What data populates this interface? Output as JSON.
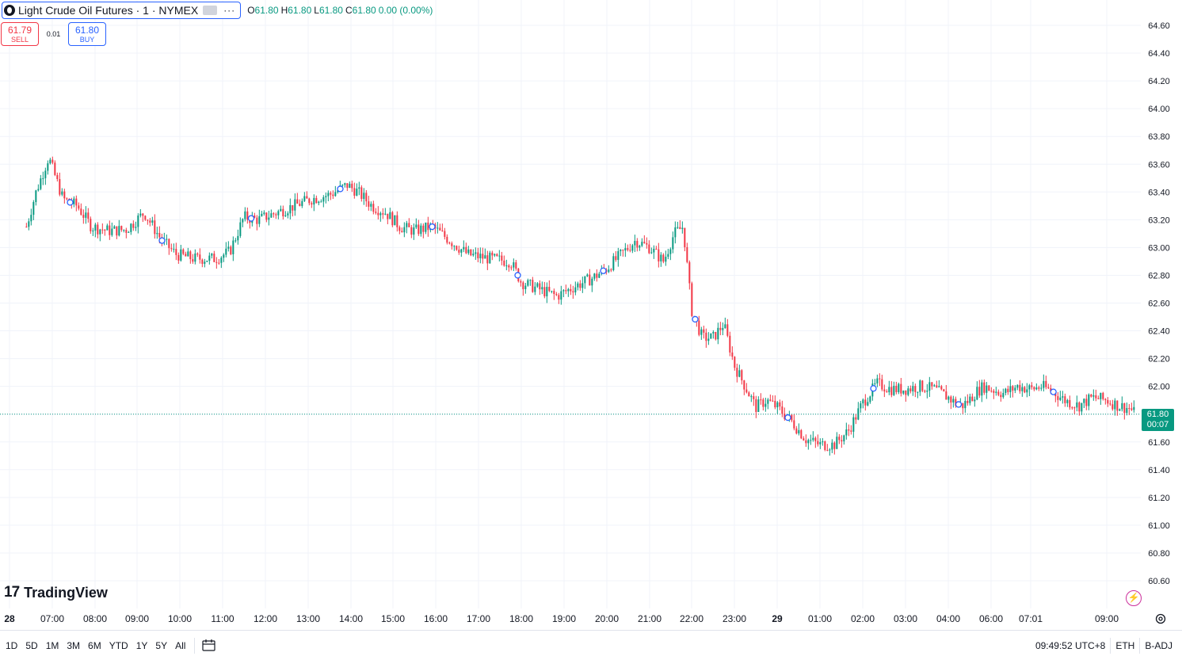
{
  "symbol": {
    "title": "Light Crude Oil Futures · 1 · NYMEX",
    "more": "···",
    "ohlc": {
      "o_label": "O",
      "o": "61.80",
      "h_label": "H",
      "h": "61.80",
      "l_label": "L",
      "l": "61.80",
      "c_label": "C",
      "c": "61.80",
      "change": "0.00 (0.00%)"
    }
  },
  "trade": {
    "sell_price": "61.79",
    "sell_label": "SELL",
    "spread": "0.01",
    "buy_price": "61.80",
    "buy_label": "BUY"
  },
  "last_price": {
    "price": "61.80",
    "countdown": "00:07"
  },
  "branding": {
    "name": "TradingView"
  },
  "periods": [
    "1D",
    "5D",
    "1M",
    "3M",
    "6M",
    "YTD",
    "1Y",
    "5Y",
    "All"
  ],
  "status": {
    "time": "09:49:52 UTC+8",
    "session": "ETH",
    "adjust": "B-ADJ"
  },
  "icons": {
    "settings": "gear-icon",
    "flash": "lightning-icon",
    "range": "calendar-range-icon",
    "logo": "tradingview-logo-icon"
  },
  "colors": {
    "up": "#089981",
    "down": "#f23645",
    "accent": "#2962ff",
    "event": "#2962ff"
  },
  "chart_data": {
    "type": "candlestick",
    "title": "",
    "ylim": [
      60.5,
      64.7
    ],
    "y_ticks": [
      "64.60",
      "64.40",
      "64.20",
      "64.00",
      "63.80",
      "63.60",
      "63.40",
      "63.20",
      "63.00",
      "62.80",
      "62.60",
      "62.40",
      "62.20",
      "62.00",
      "61.80",
      "61.60",
      "61.40",
      "61.20",
      "61.00",
      "60.80",
      "60.60"
    ],
    "x_ticks": [
      "28",
      "07:00",
      "08:00",
      "09:00",
      "10:00",
      "11:00",
      "12:00",
      "13:00",
      "14:00",
      "15:00",
      "16:00",
      "17:00",
      "18:00",
      "19:00",
      "20:00",
      "21:00",
      "22:00",
      "23:00",
      "29",
      "01:00",
      "02:00",
      "03:00",
      "04:00",
      "06:00",
      "07:01",
      "09:00"
    ],
    "last_price": 61.8,
    "x": [
      "06:25",
      "06:38",
      "06:55",
      "07:15",
      "07:35",
      "07:55",
      "08:20",
      "08:45",
      "09:10",
      "09:35",
      "09:55",
      "10:20",
      "10:50",
      "11:10",
      "11:30",
      "11:50",
      "12:15",
      "12:40",
      "13:05",
      "13:30",
      "13:55",
      "14:10",
      "14:30",
      "14:50",
      "15:10",
      "15:30",
      "15:55",
      "16:20",
      "16:45",
      "17:15",
      "17:45",
      "18:00",
      "18:25",
      "18:50",
      "19:15",
      "19:40",
      "20:00",
      "20:20",
      "20:40",
      "21:00",
      "21:20",
      "21:35",
      "21:48",
      "22:00",
      "22:15",
      "22:30",
      "22:45",
      "23:00",
      "23:15",
      "23:30",
      "23:45",
      "00:00",
      "00:20",
      "00:40",
      "01:00",
      "01:20",
      "01:40",
      "02:00",
      "02:20",
      "02:40",
      "03:00",
      "03:20",
      "03:40",
      "04:00",
      "04:20",
      "04:40",
      "05:00",
      "05:20",
      "05:40",
      "06:00",
      "06:20",
      "06:40",
      "07:00",
      "07:20",
      "07:40",
      "08:00",
      "08:20",
      "08:40",
      "09:00",
      "09:20",
      "09:40",
      "09:49"
    ],
    "series": [
      {
        "name": "Close",
        "values": [
          63.15,
          63.4,
          63.65,
          63.35,
          63.3,
          63.15,
          63.12,
          63.13,
          63.25,
          63.05,
          62.95,
          62.92,
          62.92,
          62.97,
          63.22,
          63.2,
          63.25,
          63.3,
          63.35,
          63.38,
          63.45,
          63.4,
          63.3,
          63.25,
          63.15,
          63.12,
          63.15,
          63.05,
          62.95,
          62.92,
          62.9,
          62.75,
          62.7,
          62.65,
          62.72,
          62.78,
          62.85,
          62.95,
          63.05,
          63.0,
          62.9,
          63.1,
          63.15,
          62.55,
          62.35,
          62.35,
          62.45,
          62.15,
          62.0,
          61.85,
          61.9,
          61.85,
          61.75,
          61.62,
          61.58,
          61.58,
          61.68,
          61.88,
          62.02,
          61.98,
          61.98,
          62.0,
          61.98,
          61.92,
          61.88,
          61.86,
          61.9,
          61.96,
          62.0,
          61.98,
          61.95,
          62.0,
          61.98,
          62.0,
          61.96,
          61.9,
          61.86,
          61.92,
          61.9,
          61.86,
          61.84,
          61.8
        ]
      }
    ],
    "event_markers_x": [
      "07:25",
      "09:35",
      "11:40",
      "13:45",
      "15:55",
      "17:55",
      "19:55",
      "22:05",
      "00:15",
      "02:15",
      "04:30",
      "07:40"
    ]
  }
}
